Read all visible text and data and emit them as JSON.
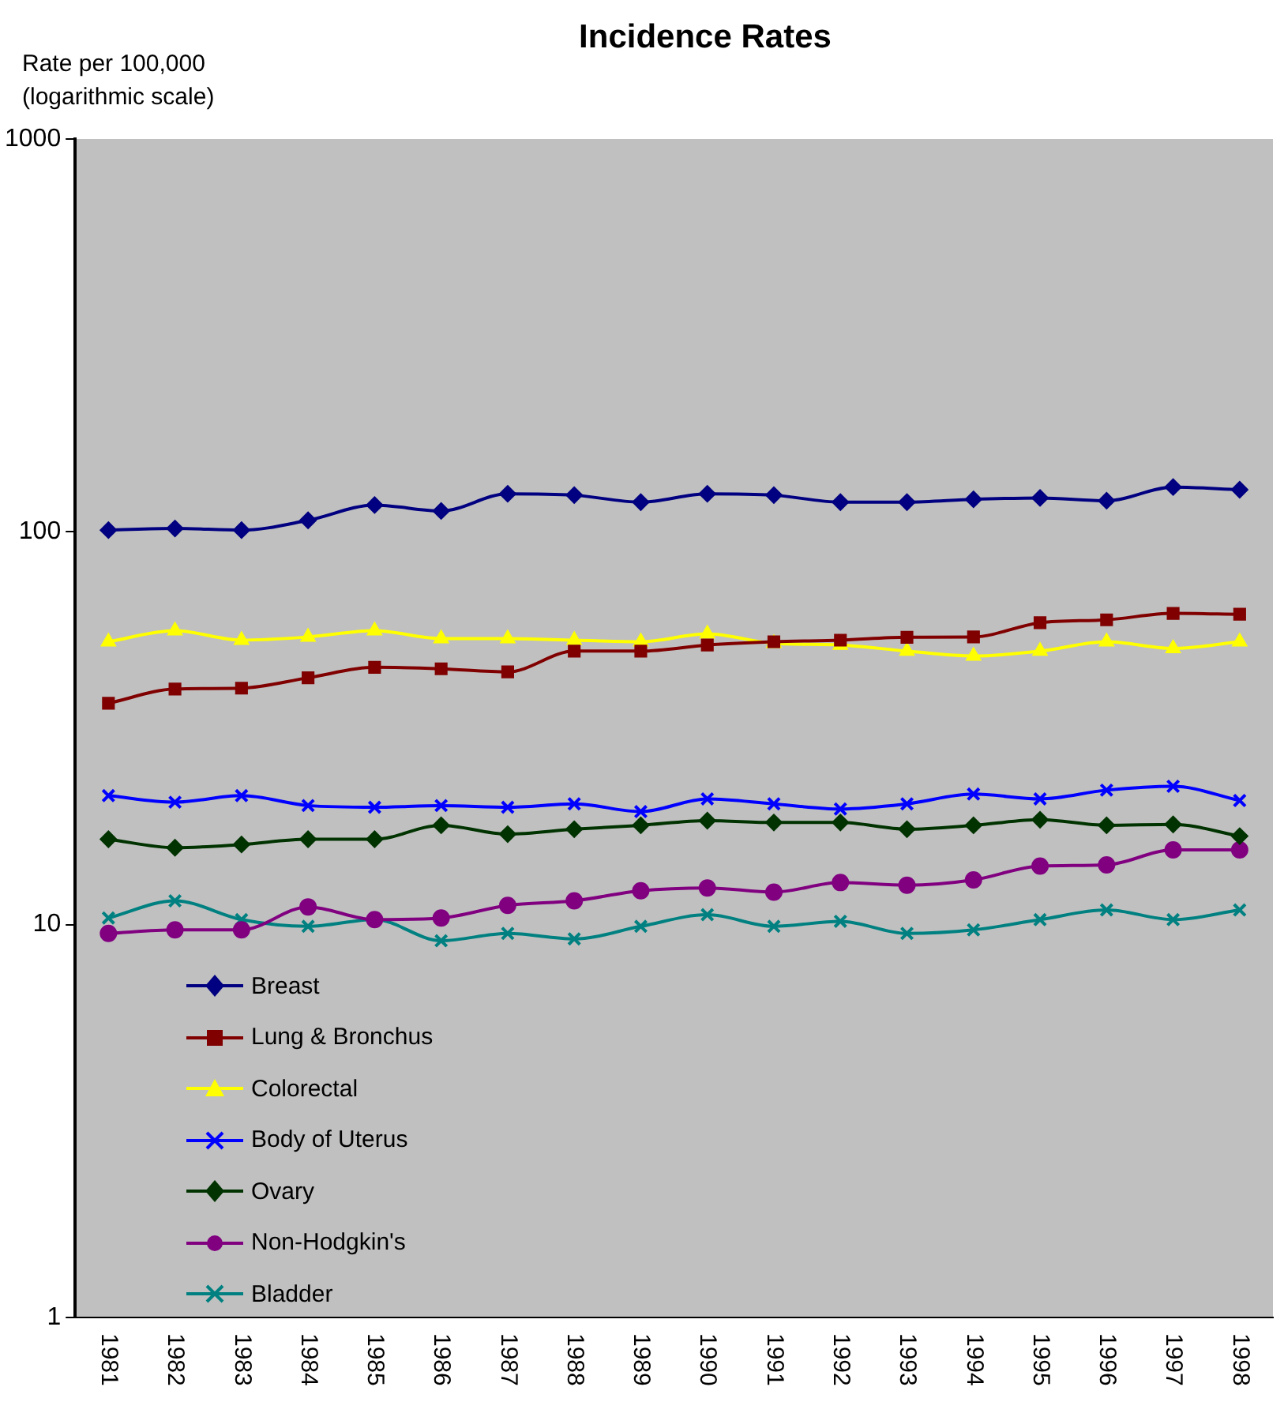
{
  "chart_data": {
    "type": "line",
    "title": "Incidence Rates",
    "ylabel": "Rate per 100,000\n(logarithmic scale)",
    "categories": [
      "1981",
      "1982",
      "1983",
      "1984",
      "1985",
      "1986",
      "1987",
      "1988",
      "1989",
      "1990",
      "1991",
      "1992",
      "1993",
      "1994",
      "1995",
      "1996",
      "1997",
      "1998"
    ],
    "log": "y",
    "ylim": [
      1,
      1000
    ],
    "yticks": [
      1,
      10,
      100,
      1000
    ],
    "grid": false,
    "legend": "bottom left",
    "line_style": "solid",
    "series": [
      {
        "name": "Breast",
        "color": "#000080",
        "marker": "diamond",
        "values": [
          101,
          102,
          101,
          107,
          117,
          113,
          125,
          124,
          119,
          125,
          124,
          119,
          119,
          121,
          122,
          120,
          130,
          128
        ]
      },
      {
        "name": "Lung & Bronchus",
        "color": "#800000",
        "marker": "square",
        "values": [
          36.6,
          39.8,
          40,
          42.5,
          45.2,
          44.8,
          44,
          49.7,
          49.7,
          51.5,
          52.5,
          53,
          53.9,
          54,
          58.7,
          59.7,
          62,
          61.7
        ]
      },
      {
        "name": "Colorectal",
        "color": "#ffff00",
        "marker": "triangle",
        "values": [
          52.5,
          56,
          53,
          54,
          56,
          53.5,
          53.5,
          53,
          52.5,
          55,
          52,
          51.5,
          49.7,
          48.3,
          49.7,
          52.5,
          50.5,
          52.5
        ]
      },
      {
        "name": "Body of Uterus",
        "color": "#0000ff",
        "marker": "cross",
        "values": [
          21.3,
          20.5,
          21.3,
          20.1,
          19.9,
          20.1,
          19.9,
          20.3,
          19.4,
          20.9,
          20.3,
          19.7,
          20.3,
          21.5,
          20.9,
          22,
          22.5,
          20.7
        ]
      },
      {
        "name": "Ovary",
        "color": "#003300",
        "marker": "diamond",
        "values": [
          16.5,
          15.7,
          16,
          16.5,
          16.5,
          17.9,
          17,
          17.5,
          17.9,
          18.4,
          18.2,
          18.2,
          17.5,
          17.9,
          18.5,
          17.9,
          18,
          16.8
        ]
      },
      {
        "name": "Non-Hodgkin's",
        "color": "#800080",
        "marker": "circle",
        "values": [
          9.5,
          9.7,
          9.7,
          11.1,
          10.3,
          10.4,
          11.2,
          11.5,
          12.2,
          12.4,
          12.1,
          12.8,
          12.6,
          13,
          14.1,
          14.2,
          15.5,
          15.5
        ]
      },
      {
        "name": "Bladder",
        "color": "#008080",
        "marker": "cross",
        "values": [
          10.4,
          11.5,
          10.3,
          9.9,
          10.3,
          9.1,
          9.5,
          9.2,
          9.9,
          10.6,
          9.9,
          10.2,
          9.5,
          9.7,
          10.3,
          10.9,
          10.3,
          10.9
        ]
      }
    ]
  }
}
